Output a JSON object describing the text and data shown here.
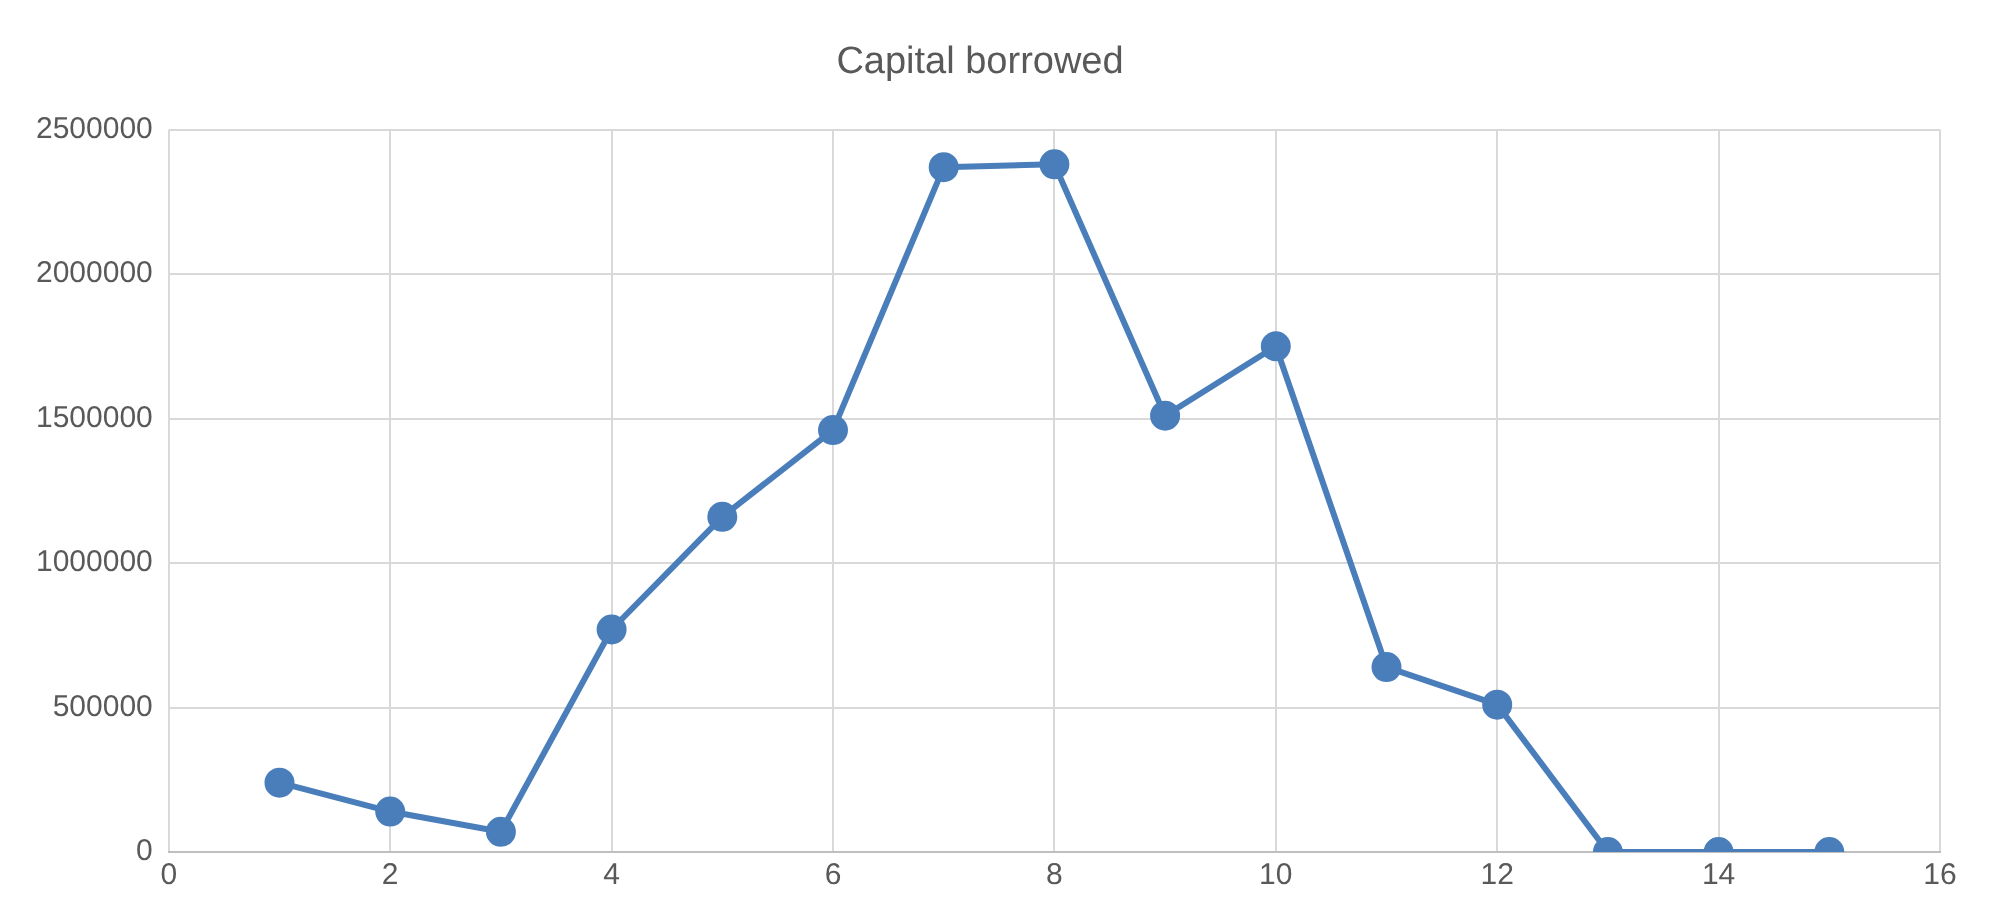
{
  "chart_data": {
    "type": "line",
    "title": "Capital borrowed",
    "x": [
      1,
      2,
      3,
      4,
      5,
      6,
      7,
      8,
      9,
      10,
      11,
      12,
      13,
      14,
      15
    ],
    "series": [
      {
        "color": "#4a7ebb",
        "values": [
          240000,
          140000,
          70000,
          770000,
          1160000,
          1460000,
          2370000,
          2380000,
          1510000,
          1750000,
          640000,
          510000,
          0,
          0,
          0
        ]
      }
    ],
    "xlim": [
      0,
      16
    ],
    "xticks": [
      0,
      2,
      4,
      6,
      8,
      10,
      12,
      14,
      16
    ],
    "ylim": [
      0,
      2500000
    ],
    "yticks": [
      0,
      500000,
      1000000,
      1500000,
      2000000,
      2500000
    ],
    "grid": true,
    "legend": false,
    "marker": "circle",
    "line_style": "solid"
  }
}
